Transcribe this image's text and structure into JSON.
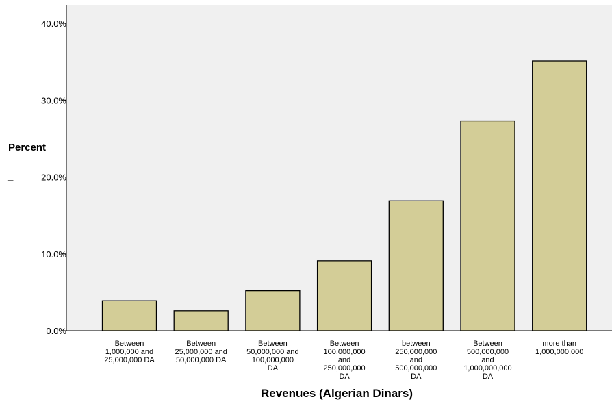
{
  "chart_data": {
    "type": "bar",
    "title": "",
    "xlabel": "Revenues (Algerian Dinars)",
    "ylabel": "Percent",
    "ylabel_mark": "_",
    "ylim": [
      0,
      40
    ],
    "yticks": [
      0,
      10,
      20,
      30,
      40
    ],
    "ytick_labels": [
      "0.0%",
      "10.0%",
      "20.0%",
      "30.0%",
      "40.0%"
    ],
    "categories": [
      [
        "Between",
        "1,000,000 and",
        "25,000,000 DA"
      ],
      [
        "Between",
        "25,000,000 and",
        "50,000,000 DA"
      ],
      [
        "Between",
        "50,000,000 and",
        "100,000,000",
        "DA"
      ],
      [
        "Between",
        "100,000,000",
        "and",
        "250,000,000",
        "DA"
      ],
      [
        "between",
        "250,000,000",
        "and",
        "500,000,000",
        "DA"
      ],
      [
        "Between",
        "500,000,000",
        "and",
        "1,000,000,000",
        "DA"
      ],
      [
        "more than",
        "1,000,000,000"
      ]
    ],
    "values": [
      3.9,
      2.6,
      5.2,
      9.1,
      16.9,
      27.3,
      35.1
    ],
    "grid": false,
    "legend": "none",
    "colors": {
      "plot_background": "#f0f0f0",
      "bar_fill": "#d3cd97",
      "bar_stroke": "#000000",
      "axis": "#000000"
    }
  }
}
